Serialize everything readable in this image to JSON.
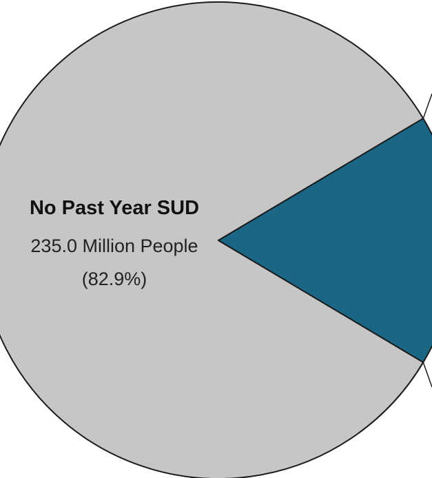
{
  "chart_data": {
    "type": "pie",
    "slices": [
      {
        "name": "No Past Year SUD",
        "value_text": "235.0 Million People",
        "percent_text": "(82.9%)",
        "percent": 82.9,
        "color": "#c6c6c6"
      },
      {
        "name": "",
        "percent": 17.1,
        "color": "#1b6685"
      }
    ],
    "stroke_color": "#1a1a1a",
    "leader_line_color": "#1a1a1a"
  }
}
